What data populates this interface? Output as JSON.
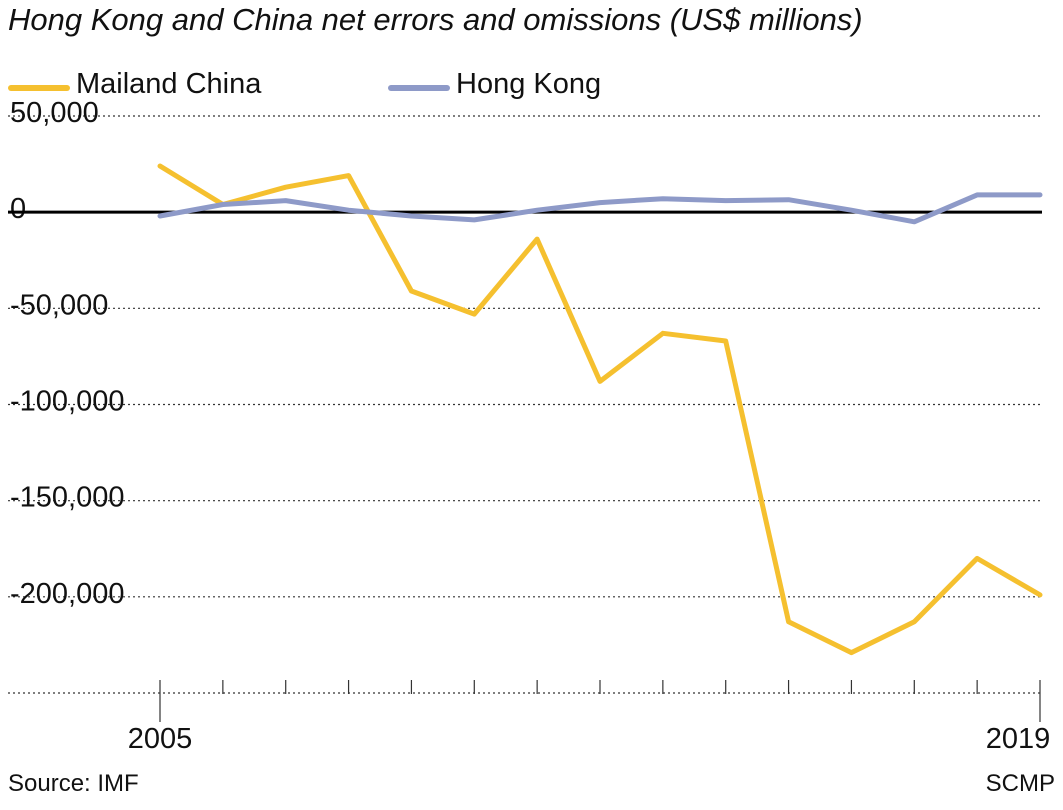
{
  "chart_data": {
    "type": "line",
    "title": "Hong Kong and China net errors and omissions (US$ millions)",
    "x": [
      2005,
      2006,
      2007,
      2008,
      2009,
      2010,
      2011,
      2012,
      2013,
      2014,
      2015,
      2016,
      2017,
      2018,
      2019
    ],
    "x_tick_labels": [
      "2005",
      "2019"
    ],
    "y_ticks": [
      50000,
      0,
      -50000,
      -100000,
      -150000,
      -200000
    ],
    "y_tick_labels": [
      "50,000",
      "0",
      "-50,000",
      "-100,000",
      "-150,000",
      "-200,000"
    ],
    "ylim": [
      -250000,
      50000
    ],
    "grid": true,
    "legend_position": "top-left",
    "series": [
      {
        "name": "Mailand China",
        "color": "#f5c02f",
        "values": [
          24000,
          4000,
          13000,
          19000,
          -41000,
          -53000,
          -14000,
          -88000,
          -63000,
          -67000,
          -213000,
          -229000,
          -213000,
          -180000,
          -199000
        ]
      },
      {
        "name": "Hong Kong",
        "color": "#8e9ac8",
        "values": [
          -2000,
          4000,
          6000,
          1000,
          -2000,
          -4000,
          1000,
          5000,
          7000,
          6000,
          6500,
          1000,
          -5000,
          9000,
          9000
        ]
      }
    ],
    "source": "Source: IMF",
    "credit": "SCMP"
  }
}
